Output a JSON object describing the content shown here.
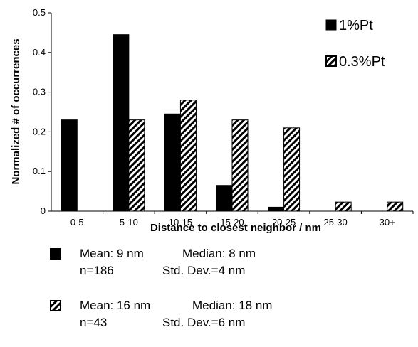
{
  "chart_data": {
    "type": "bar",
    "categories": [
      "0-5",
      "5-10",
      "10-15",
      "15-20",
      "20-25",
      "25-30",
      "30+"
    ],
    "series": [
      {
        "name": "1%Pt",
        "values": [
          0.23,
          0.445,
          0.245,
          0.065,
          0.01,
          0,
          0
        ],
        "fill": "solid",
        "color": "#000000"
      },
      {
        "name": "0.3%Pt",
        "values": [
          0,
          0.23,
          0.28,
          0.23,
          0.21,
          0.023,
          0.023
        ],
        "fill": "diagonal-hatch",
        "color": "#000000"
      }
    ],
    "xlabel": "Distance to closest neighbor / nm",
    "ylabel": "Normalized # of occurrences",
    "ylim": [
      0,
      0.5
    ],
    "yticks": [
      "0",
      "0.1",
      "0.2",
      "0.3",
      "0.4",
      "0.5"
    ],
    "grid": false,
    "legend_position": "top-right"
  },
  "stats": {
    "series_1": {
      "mean": "Mean: 9 nm",
      "median": "Median: 8 nm",
      "n": "n=186",
      "std": "Std. Dev.=4 nm"
    },
    "series_2": {
      "mean": "Mean: 16 nm",
      "median": "Median: 18 nm",
      "n": "n=43",
      "std": "Std. Dev.=6 nm"
    }
  }
}
